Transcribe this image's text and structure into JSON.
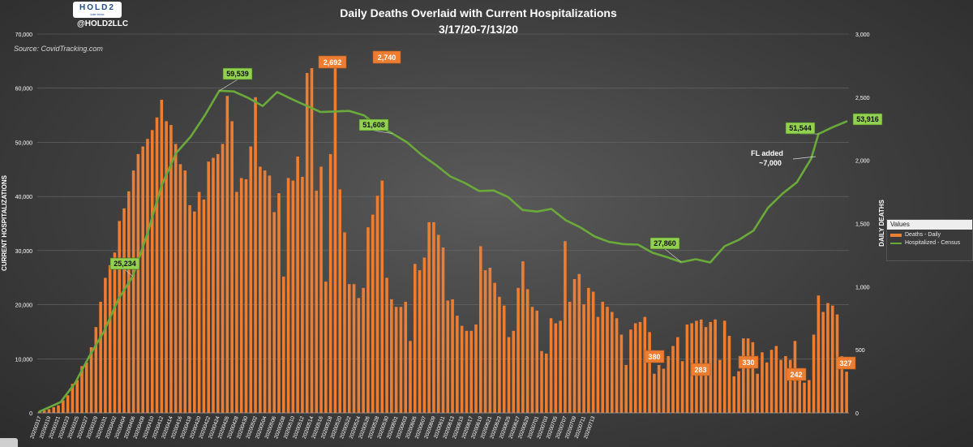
{
  "header": {
    "title_line1": "Daily Deaths Overlaid with Current Hospitalizations",
    "title_line2": "3/17/20-7/13/20",
    "logo_text": "HOLD2",
    "logo_sub": "kale tmax",
    "handle": "@HOLD2LLC",
    "source": "Source: CovidTracking.com"
  },
  "legend": {
    "header": "Values",
    "bars_label": "Deaths - Daily",
    "line_label": "Hospitalized - Census"
  },
  "colors": {
    "bars": "#ed7d31",
    "line": "#6aaa3a",
    "callout_line": "#92d050",
    "text": "#ffffff"
  },
  "chart_data": {
    "type": "bar+line",
    "title": "Daily Deaths Overlaid with Current Hospitalizations",
    "subtitle": "3/17/20-7/13/20",
    "ylabel_left": "CURRENT HOSPITALIZATIONS",
    "ylabel_right": "DAILY DEATHS",
    "ylim_left": [
      0,
      70000
    ],
    "ylim_right": [
      0,
      3000
    ],
    "yticks_left": [
      "0",
      "10,000",
      "20,000",
      "30,000",
      "40,000",
      "50,000",
      "60,000",
      "70,000"
    ],
    "yticks_right": [
      "0",
      "500",
      "1,000",
      "1,500",
      "2,000",
      "2,500",
      "3,000"
    ],
    "x_tick_labels": [
      "20200317",
      "20200319",
      "20200321",
      "20200323",
      "20200325",
      "20200327",
      "20200329",
      "20200331",
      "20200402",
      "20200404",
      "20200406",
      "20200408",
      "20200410",
      "20200412",
      "20200414",
      "20200416",
      "20200418",
      "20200420",
      "20200422",
      "20200424",
      "20200426",
      "20200428",
      "20200430",
      "20200502",
      "20200504",
      "20200506",
      "20200508",
      "20200510",
      "20200512",
      "20200514",
      "20200516",
      "20200518",
      "20200520",
      "20200522",
      "20200524",
      "20200526",
      "20200528",
      "20200530",
      "20200601",
      "20200603",
      "20200605",
      "20200607",
      "20200609",
      "20200611",
      "20200613",
      "20200615",
      "20200617",
      "20200619",
      "20200621",
      "20200623",
      "20200625",
      "20200627",
      "20200629",
      "20200701",
      "20200703",
      "20200705",
      "20200707",
      "20200709",
      "20200711",
      "20200713"
    ],
    "series": [
      {
        "name": "Deaths - Daily",
        "axis": "right",
        "values": [
          12,
          20,
          30,
          45,
          60,
          100,
          140,
          230,
          260,
          370,
          400,
          520,
          680,
          880,
          1070,
          1170,
          1270,
          1520,
          1620,
          1755,
          1920,
          2050,
          2110,
          2170,
          2240,
          2340,
          2480,
          2310,
          2280,
          2130,
          1970,
          1920,
          1645,
          1595,
          1750,
          1690,
          1990,
          2020,
          2050,
          2130,
          2510,
          2310,
          1750,
          1860,
          1850,
          2110,
          2500,
          1950,
          1920,
          1880,
          1590,
          1740,
          1080,
          1860,
          1840,
          2030,
          1870,
          2692,
          2730,
          1760,
          1950,
          1040,
          2050,
          2740,
          1770,
          1430,
          1020,
          1020,
          910,
          990,
          1470,
          1570,
          1720,
          1840,
          1070,
          900,
          840,
          840,
          880,
          570,
          1180,
          1130,
          1230,
          1510,
          1510,
          1410,
          1310,
          890,
          900,
          770,
          690,
          650,
          650,
          700,
          1320,
          1130,
          1150,
          1030,
          920,
          850,
          600,
          650,
          990,
          1200,
          980,
          840,
          810,
          490,
          470,
          750,
          710,
          730,
          1360,
          880,
          1060,
          1100,
          860,
          990,
          960,
          760,
          880,
          840,
          800,
          750,
          620,
          380,
          660,
          710,
          720,
          760,
          640,
          310,
          380,
          350,
          450,
          530,
          600,
          410,
          700,
          710,
          730,
          740,
          680,
          720,
          740,
          420,
          730,
          610,
          290,
          330,
          590,
          590,
          560,
          310,
          480,
          400,
          500,
          530,
          420,
          450,
          420,
          570,
          310,
          240,
          260,
          620,
          930,
          800,
          870,
          850,
          780,
          450,
          327
        ]
      },
      {
        "name": "Hospitalized - Census",
        "axis": "left",
        "points": [
          {
            "x": 0,
            "y": 200
          },
          {
            "x": 6,
            "y": 2000
          },
          {
            "x": 10,
            "y": 5500
          },
          {
            "x": 14,
            "y": 10500
          },
          {
            "x": 18,
            "y": 15000
          },
          {
            "x": 22,
            "y": 21000
          },
          {
            "x": 26,
            "y": 25234
          },
          {
            "x": 30,
            "y": 33000
          },
          {
            "x": 34,
            "y": 42000
          },
          {
            "x": 38,
            "y": 48000
          },
          {
            "x": 42,
            "y": 51000
          },
          {
            "x": 46,
            "y": 55000
          },
          {
            "x": 50,
            "y": 59539
          },
          {
            "x": 54,
            "y": 59400
          },
          {
            "x": 58,
            "y": 58200
          },
          {
            "x": 62,
            "y": 56700
          },
          {
            "x": 66,
            "y": 59300
          },
          {
            "x": 70,
            "y": 58000
          },
          {
            "x": 74,
            "y": 56800
          },
          {
            "x": 78,
            "y": 55600
          },
          {
            "x": 82,
            "y": 55700
          },
          {
            "x": 86,
            "y": 55800
          },
          {
            "x": 90,
            "y": 55000
          },
          {
            "x": 94,
            "y": 53000
          },
          {
            "x": 98,
            "y": 51608
          },
          {
            "x": 102,
            "y": 50000
          },
          {
            "x": 106,
            "y": 47700
          },
          {
            "x": 110,
            "y": 45800
          },
          {
            "x": 114,
            "y": 43700
          },
          {
            "x": 118,
            "y": 42500
          },
          {
            "x": 122,
            "y": 41000
          },
          {
            "x": 126,
            "y": 41100
          },
          {
            "x": 130,
            "y": 39900
          },
          {
            "x": 134,
            "y": 37500
          },
          {
            "x": 138,
            "y": 37200
          },
          {
            "x": 142,
            "y": 37700
          },
          {
            "x": 146,
            "y": 35600
          },
          {
            "x": 150,
            "y": 34300
          },
          {
            "x": 154,
            "y": 32600
          },
          {
            "x": 158,
            "y": 31600
          },
          {
            "x": 162,
            "y": 31200
          },
          {
            "x": 166,
            "y": 31100
          },
          {
            "x": 170,
            "y": 29600
          },
          {
            "x": 174,
            "y": 28800
          },
          {
            "x": 178,
            "y": 27860
          },
          {
            "x": 182,
            "y": 28400
          },
          {
            "x": 186,
            "y": 27800
          },
          {
            "x": 190,
            "y": 30800
          },
          {
            "x": 194,
            "y": 32000
          },
          {
            "x": 198,
            "y": 33700
          },
          {
            "x": 202,
            "y": 37900
          },
          {
            "x": 206,
            "y": 40500
          },
          {
            "x": 210,
            "y": 42600
          },
          {
            "x": 214,
            "y": 47000
          },
          {
            "x": 216,
            "y": 51544
          },
          {
            "x": 220,
            "y": 52800
          },
          {
            "x": 224,
            "y": 53916
          }
        ],
        "x_max": 224
      }
    ],
    "annotations": {
      "line_callouts": [
        "25,234",
        "59,539",
        "51,608",
        "27,860",
        "51,544",
        "53,916"
      ],
      "bar_callouts": [
        "2,692",
        "2,740",
        "380",
        "283",
        "330",
        "242",
        "327"
      ],
      "fl_note_line1": "FL added",
      "fl_note_line2": "~7,000"
    }
  }
}
